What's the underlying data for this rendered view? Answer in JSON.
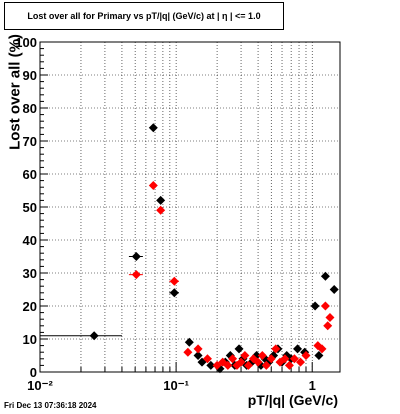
{
  "chart_data": {
    "type": "scatter",
    "title": "Lost over all for Primary vs pT/|q| (GeV/c) at |  η  | <= 1.0",
    "xlabel": "pT/|q| (GeV/c)",
    "ylabel": "Lost over all (%)",
    "x_scale": "log",
    "xlim": [
      0.01,
      1.6
    ],
    "ylim": [
      0,
      100
    ],
    "x_tick_labels": [
      "10⁻²",
      "10⁻¹",
      "1"
    ],
    "y_tick_labels": [
      "0",
      "10",
      "20",
      "30",
      "40",
      "50",
      "60",
      "70",
      "80",
      "90",
      "100"
    ],
    "grid": true,
    "series": [
      {
        "color": "#000000",
        "points": [
          {
            "x": 0.025,
            "y": 11,
            "xerr_lo": 0.015,
            "xerr_hi": 0.015
          },
          {
            "x": 0.051,
            "y": 35,
            "xerr_lo": 0.006,
            "xerr_hi": 0.006
          },
          {
            "x": 0.068,
            "y": 74
          },
          {
            "x": 0.077,
            "y": 52
          },
          {
            "x": 0.097,
            "y": 24,
            "xerr_lo": 0.008,
            "xerr_hi": 0.008
          },
          {
            "x": 0.125,
            "y": 9
          },
          {
            "x": 0.145,
            "y": 5
          },
          {
            "x": 0.155,
            "y": 3
          },
          {
            "x": 0.18,
            "y": 2
          },
          {
            "x": 0.21,
            "y": 1
          },
          {
            "x": 0.23,
            "y": 3
          },
          {
            "x": 0.25,
            "y": 5
          },
          {
            "x": 0.27,
            "y": 2
          },
          {
            "x": 0.29,
            "y": 7
          },
          {
            "x": 0.31,
            "y": 4
          },
          {
            "x": 0.33,
            "y": 2
          },
          {
            "x": 0.36,
            "y": 3
          },
          {
            "x": 0.39,
            "y": 5
          },
          {
            "x": 0.42,
            "y": 2
          },
          {
            "x": 0.45,
            "y": 4
          },
          {
            "x": 0.48,
            "y": 3
          },
          {
            "x": 0.52,
            "y": 5
          },
          {
            "x": 0.56,
            "y": 7
          },
          {
            "x": 0.6,
            "y": 3
          },
          {
            "x": 0.65,
            "y": 5
          },
          {
            "x": 0.7,
            "y": 4
          },
          {
            "x": 0.78,
            "y": 7
          },
          {
            "x": 0.88,
            "y": 6
          },
          {
            "x": 1.05,
            "y": 20
          },
          {
            "x": 1.12,
            "y": 5
          },
          {
            "x": 1.25,
            "y": 29
          },
          {
            "x": 1.45,
            "y": 25
          }
        ]
      },
      {
        "color": "#ff0000",
        "points": [
          {
            "x": 0.051,
            "y": 29.5,
            "xerr_lo": 0.006,
            "xerr_hi": 0.006
          },
          {
            "x": 0.068,
            "y": 56.5
          },
          {
            "x": 0.077,
            "y": 49
          },
          {
            "x": 0.097,
            "y": 27.5,
            "xerr_lo": 0.008,
            "xerr_hi": 0.008
          },
          {
            "x": 0.122,
            "y": 6
          },
          {
            "x": 0.145,
            "y": 7
          },
          {
            "x": 0.17,
            "y": 4
          },
          {
            "x": 0.2,
            "y": 2
          },
          {
            "x": 0.22,
            "y": 3
          },
          {
            "x": 0.24,
            "y": 2
          },
          {
            "x": 0.26,
            "y": 4
          },
          {
            "x": 0.28,
            "y": 2
          },
          {
            "x": 0.3,
            "y": 3
          },
          {
            "x": 0.32,
            "y": 5
          },
          {
            "x": 0.34,
            "y": 2
          },
          {
            "x": 0.37,
            "y": 4
          },
          {
            "x": 0.4,
            "y": 3
          },
          {
            "x": 0.43,
            "y": 5
          },
          {
            "x": 0.46,
            "y": 2
          },
          {
            "x": 0.5,
            "y": 4
          },
          {
            "x": 0.54,
            "y": 7
          },
          {
            "x": 0.58,
            "y": 3
          },
          {
            "x": 0.63,
            "y": 4
          },
          {
            "x": 0.68,
            "y": 2
          },
          {
            "x": 0.74,
            "y": 4
          },
          {
            "x": 0.82,
            "y": 3
          },
          {
            "x": 0.9,
            "y": 5
          },
          {
            "x": 1.1,
            "y": 8
          },
          {
            "x": 1.18,
            "y": 7
          },
          {
            "x": 1.25,
            "y": 20
          },
          {
            "x": 1.3,
            "y": 14
          },
          {
            "x": 1.35,
            "y": 16.5
          }
        ]
      }
    ]
  },
  "footer": {
    "timestamp": "Fri Dec 13 07:36:18 2024"
  }
}
